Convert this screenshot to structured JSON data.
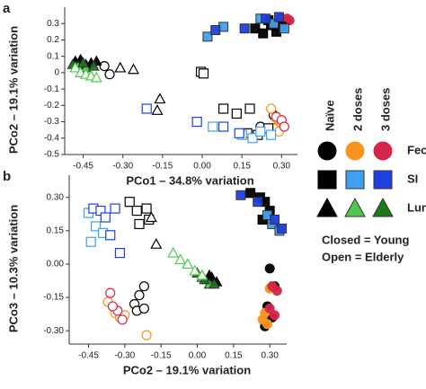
{
  "chart_data": [
    {
      "type": "scatter",
      "label": "a",
      "x_label": "PCo1 – 34.8% variation",
      "y_label": "PCo2 – 19.1% variation",
      "xlim": [
        -0.52,
        0.36
      ],
      "ylim": [
        -0.5,
        0.4
      ],
      "xticks": [
        -0.45,
        {
          "value": -0.3,
          "label": "-0.30"
        },
        -0.15,
        {
          "value": 0,
          "label": "0.00"
        },
        0.15,
        {
          "value": 0.3,
          "label": "0.30"
        }
      ],
      "yticks": [
        0.3,
        0.2,
        0.1,
        0,
        -0.1,
        -0.2,
        -0.3,
        -0.4,
        -0.5
      ],
      "series": [
        {
          "column": 0,
          "row": 0,
          "filled": true,
          "x": [
            0.3,
            0.31,
            0.29,
            0.32
          ],
          "y": [
            0.33,
            0.3,
            0.31,
            0.32
          ]
        },
        {
          "column": 1,
          "row": 0,
          "filled": true,
          "x": [
            0.3,
            0.32,
            0.31
          ],
          "y": [
            0.32,
            0.33,
            0.3
          ]
        },
        {
          "column": 2,
          "row": 0,
          "filled": true,
          "x": [
            0.31,
            0.33,
            0.32
          ],
          "y": [
            0.31,
            0.32,
            0.33
          ]
        },
        {
          "column": 0,
          "row": 0,
          "filled": false,
          "x": [
            -0.37,
            -0.35,
            0.27,
            0.29,
            0.22
          ],
          "y": [
            0.04,
            -0.01,
            -0.26,
            -0.3,
            -0.33
          ]
        },
        {
          "column": 1,
          "row": 0,
          "filled": false,
          "x": [
            0.26,
            0.28,
            0.3,
            0.27,
            0.29
          ],
          "y": [
            -0.22,
            -0.28,
            -0.31,
            -0.34,
            -0.36
          ]
        },
        {
          "column": 2,
          "row": 0,
          "filled": false,
          "x": [
            0.28,
            0.3,
            0.31
          ],
          "y": [
            -0.27,
            -0.29,
            -0.33
          ]
        },
        {
          "column": 0,
          "row": 1,
          "filled": true,
          "x": [
            0.2,
            0.23,
            0.26,
            0.28,
            0.25,
            0.3
          ],
          "y": [
            0.27,
            0.24,
            0.29,
            0.25,
            0.32,
            0.28
          ]
        },
        {
          "column": 1,
          "row": 1,
          "filled": true,
          "x": [
            0.02,
            0.08,
            0.22,
            0.27,
            0.31
          ],
          "y": [
            0.22,
            0.28,
            0.33,
            0.3,
            0.27
          ]
        },
        {
          "column": 2,
          "row": 1,
          "filled": true,
          "x": [
            0.05,
            0.16,
            0.24,
            0.29
          ],
          "y": [
            0.26,
            0.27,
            0.33,
            0.34
          ]
        },
        {
          "column": 0,
          "row": 1,
          "filled": false,
          "x": [
            -0.005,
            0.005,
            0.08,
            0.13,
            0.18,
            0.21,
            0.17,
            0.25
          ],
          "y": [
            0.005,
            -0.005,
            -0.22,
            -0.25,
            -0.22,
            -0.38,
            -0.37,
            -0.34
          ]
        },
        {
          "column": 1,
          "row": 1,
          "filled": false,
          "x": [
            0.04,
            0.15,
            0.19,
            0.22,
            0.26
          ],
          "y": [
            -0.33,
            -0.38,
            -0.4,
            -0.36,
            -0.38
          ]
        },
        {
          "column": 2,
          "row": 1,
          "filled": false,
          "x": [
            -0.21,
            -0.02,
            0.08,
            0.14
          ],
          "y": [
            -0.22,
            -0.3,
            -0.33,
            -0.37
          ]
        },
        {
          "column": 0,
          "row": 2,
          "filled": true,
          "x": [
            -0.48,
            -0.46,
            -0.44,
            -0.42,
            -0.4
          ],
          "y": [
            0.07,
            0.08,
            0.05,
            0.06,
            0.07
          ]
        },
        {
          "column": 1,
          "row": 2,
          "filled": true,
          "x": [
            -0.47,
            -0.44
          ],
          "y": [
            0.04,
            0.03
          ]
        },
        {
          "column": 2,
          "row": 2,
          "filled": true,
          "x": [
            -0.49,
            -0.45,
            -0.41
          ],
          "y": [
            0.05,
            0.06,
            0.04
          ]
        },
        {
          "column": 0,
          "row": 2,
          "filled": false,
          "x": [
            -0.31,
            -0.26,
            -0.16,
            -0.17
          ],
          "y": [
            0.03,
            0.02,
            -0.16,
            -0.23
          ]
        },
        {
          "column": 1,
          "row": 2,
          "filled": false,
          "x": [
            -0.48,
            -0.46,
            -0.44,
            -0.42,
            -0.4
          ],
          "y": [
            0.03,
            0.0,
            -0.01,
            -0.02,
            -0.03
          ]
        }
      ]
    },
    {
      "type": "scatter",
      "label": "b",
      "x_label": "PCo2 – 19.1% variation",
      "y_label": "PCo3 – 10.3% variation",
      "xlim": [
        -0.53,
        0.37
      ],
      "ylim": [
        -0.36,
        0.4
      ],
      "xticks": [
        -0.45,
        {
          "value": -0.3,
          "label": "-0.30"
        },
        -0.15,
        {
          "value": 0,
          "label": "0.00"
        },
        0.15,
        {
          "value": 0.3,
          "label": "0.30"
        }
      ],
      "yticks": [
        {
          "value": 0.3,
          "label": "0.30"
        },
        0.15,
        {
          "value": 0,
          "label": "0.00"
        },
        -0.15,
        {
          "value": -0.3,
          "label": "-0.30"
        }
      ],
      "series": [
        {
          "column": 0,
          "row": 0,
          "filled": true,
          "x": [
            0.3,
            0.32,
            0.29,
            0.31,
            0.28
          ],
          "y": [
            -0.02,
            -0.1,
            -0.19,
            -0.24,
            -0.28
          ]
        },
        {
          "column": 1,
          "row": 0,
          "filled": true,
          "x": [
            0.27,
            0.29,
            0.28,
            0.3
          ],
          "y": [
            -0.25,
            -0.27,
            -0.22,
            -0.11
          ]
        },
        {
          "column": 2,
          "row": 0,
          "filled": true,
          "x": [
            0.31,
            0.33,
            0.3,
            0.32
          ],
          "y": [
            -0.1,
            -0.12,
            -0.2,
            -0.23
          ]
        },
        {
          "column": 0,
          "row": 0,
          "filled": false,
          "x": [
            -0.22,
            -0.24,
            -0.26,
            -0.25,
            -0.22
          ],
          "y": [
            -0.1,
            -0.14,
            -0.18,
            -0.21,
            -0.2
          ]
        },
        {
          "column": 1,
          "row": 0,
          "filled": false,
          "x": [
            -0.37,
            -0.34,
            -0.32,
            -0.3,
            -0.21
          ],
          "y": [
            -0.17,
            -0.22,
            -0.24,
            -0.23,
            -0.32
          ]
        },
        {
          "column": 2,
          "row": 0,
          "filled": false,
          "x": [
            -0.36,
            -0.33,
            -0.31,
            -0.35
          ],
          "y": [
            -0.13,
            -0.21,
            -0.25,
            -0.19
          ]
        },
        {
          "column": 0,
          "row": 1,
          "filled": true,
          "x": [
            0.22,
            0.26,
            0.28,
            0.3,
            0.27
          ],
          "y": [
            0.32,
            0.3,
            0.28,
            0.24,
            0.2
          ]
        },
        {
          "column": 1,
          "row": 1,
          "filled": true,
          "x": [
            0.31,
            0.34,
            0.29
          ],
          "y": [
            0.18,
            0.15,
            0.22
          ]
        },
        {
          "column": 2,
          "row": 1,
          "filled": true,
          "x": [
            0.18,
            0.25,
            0.32,
            0.35
          ],
          "y": [
            0.31,
            0.28,
            0.2,
            0.16
          ]
        },
        {
          "column": 0,
          "row": 1,
          "filled": false,
          "x": [
            -0.28,
            -0.25,
            -0.21,
            -0.2,
            -0.24
          ],
          "y": [
            0.28,
            0.24,
            0.25,
            0.2,
            0.18
          ]
        },
        {
          "column": 1,
          "row": 1,
          "filled": false,
          "x": [
            -0.45,
            -0.42,
            -0.44,
            -0.39
          ],
          "y": [
            0.23,
            0.17,
            0.1,
            0.14
          ]
        },
        {
          "column": 2,
          "row": 1,
          "filled": false,
          "x": [
            -0.43,
            -0.4,
            -0.38,
            -0.34,
            -0.32,
            -0.36
          ],
          "y": [
            0.25,
            0.24,
            0.21,
            0.25,
            0.05,
            0.13
          ]
        },
        {
          "column": 0,
          "row": 2,
          "filled": true,
          "x": [
            0.04,
            0.06,
            0.08,
            0.05
          ],
          "y": [
            -0.07,
            -0.06,
            -0.08,
            -0.05
          ]
        },
        {
          "column": 1,
          "row": 2,
          "filled": true,
          "x": [
            0.02,
            0.05
          ],
          "y": [
            -0.06,
            -0.09
          ]
        },
        {
          "column": 2,
          "row": 2,
          "filled": true,
          "x": [
            0.0,
            0.03,
            0.07
          ],
          "y": [
            -0.04,
            -0.07,
            -0.09
          ]
        },
        {
          "column": 0,
          "row": 2,
          "filled": false,
          "x": [
            -0.19,
            -0.17
          ],
          "y": [
            0.21,
            0.09
          ]
        },
        {
          "column": 1,
          "row": 2,
          "filled": false,
          "x": [
            -0.1,
            -0.07,
            -0.04,
            -0.01,
            0.02
          ],
          "y": [
            0.05,
            0.02,
            0.0,
            -0.03,
            -0.05
          ]
        }
      ]
    }
  ],
  "legend": {
    "columns": [
      "Naïve",
      "2 doses",
      "3 doses"
    ],
    "rows": [
      "Feces",
      "SI",
      "Lung"
    ],
    "shapes": [
      "circle",
      "square",
      "triangle"
    ],
    "colors": [
      [
        "#000000",
        "#f7941d",
        "#d6254a"
      ],
      [
        "#000000",
        "#3fa0f0",
        "#1f3fe0"
      ],
      [
        "#000000",
        "#50c850",
        "#1a7a1a"
      ]
    ],
    "notes": [
      "Closed = Young",
      "Open = Elderly"
    ]
  }
}
